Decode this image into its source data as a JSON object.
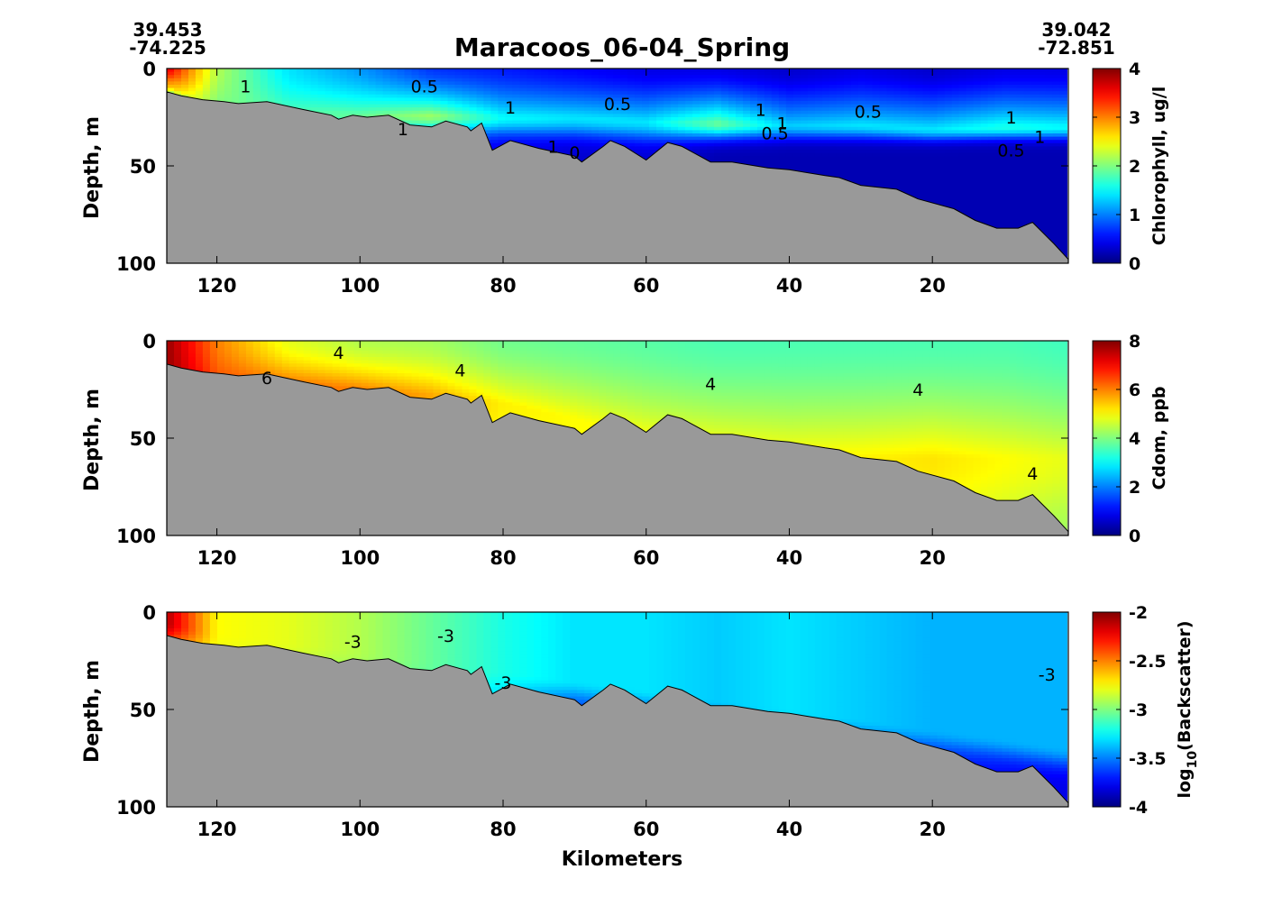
{
  "figure": {
    "title": "Maracoos_06-04_Spring",
    "start": {
      "lat": "39.453",
      "lon": "-74.225"
    },
    "end": {
      "lat": "39.042",
      "lon": "-72.851"
    },
    "xlabel": "Kilometers",
    "bathymetry_color": "#999999"
  },
  "chart_data": [
    {
      "type": "heatmap",
      "xlabel": "",
      "ylabel": "Depth, m",
      "xlim": [
        127,
        1
      ],
      "ylim": [
        0,
        100
      ],
      "yreversed": true,
      "xticks": [
        "120",
        "100",
        "80",
        "60",
        "40",
        "20"
      ],
      "xtick_values": [
        120,
        100,
        80,
        60,
        40,
        20
      ],
      "yticks": [
        "0",
        "50",
        "100"
      ],
      "ytick_values": [
        0,
        50,
        100
      ],
      "colorbar": {
        "label": "Chlorophyll, ug/l",
        "min": 0,
        "max": 4,
        "ticks": [
          "0",
          "1",
          "2",
          "3",
          "4"
        ],
        "tick_values": [
          0,
          1,
          2,
          3,
          4
        ]
      },
      "contour_labels": [
        {
          "text": "1",
          "x": 116,
          "y": 9
        },
        {
          "text": "0.5",
          "x": 91,
          "y": 9
        },
        {
          "text": "1",
          "x": 79,
          "y": 20
        },
        {
          "text": "0.5",
          "x": 64,
          "y": 18
        },
        {
          "text": "1",
          "x": 44,
          "y": 21
        },
        {
          "text": "0.5",
          "x": 29,
          "y": 22
        },
        {
          "text": "1",
          "x": 41,
          "y": 28
        },
        {
          "text": "0.5",
          "x": 42,
          "y": 33
        },
        {
          "text": "1",
          "x": 9,
          "y": 25
        },
        {
          "text": "1",
          "x": 5,
          "y": 35
        },
        {
          "text": "0.5",
          "x": 9,
          "y": 42
        },
        {
          "text": "1",
          "x": 94,
          "y": 31
        },
        {
          "text": "1",
          "x": 73,
          "y": 40
        },
        {
          "text": "0",
          "x": 70,
          "y": 43
        }
      ],
      "field": {
        "columns_km": [
          127,
          120,
          110,
          100,
          90,
          80,
          70,
          60,
          50,
          40,
          30,
          20,
          10,
          1
        ],
        "surface": [
          3.6,
          2.2,
          1.4,
          1.1,
          0.7,
          0.6,
          0.5,
          0.4,
          0.4,
          0.3,
          0.4,
          0.3,
          0.4,
          0.4
        ],
        "max_depth": [
          6,
          18,
          22,
          24,
          24,
          25,
          25,
          27,
          28,
          29,
          29,
          31,
          30,
          30
        ],
        "max_value": [
          3.0,
          2.0,
          1.8,
          1.9,
          2.1,
          1.5,
          1.4,
          1.4,
          1.9,
          1.3,
          1.4,
          1.4,
          1.6,
          1.5
        ],
        "bottom": [
          1.0,
          0.9,
          0.7,
          0.6,
          0.6,
          0.4,
          0.3,
          0.3,
          0.2,
          0.2,
          0.2,
          0.2,
          0.2,
          0.2
        ],
        "layer_width": [
          8,
          8,
          9,
          9,
          9,
          9,
          10,
          10,
          8,
          7,
          7,
          6,
          6,
          6
        ]
      }
    },
    {
      "type": "heatmap",
      "xlabel": "",
      "ylabel": "Depth, m",
      "xlim": [
        127,
        1
      ],
      "ylim": [
        0,
        100
      ],
      "yreversed": true,
      "xticks": [
        "120",
        "100",
        "80",
        "60",
        "40",
        "20"
      ],
      "xtick_values": [
        120,
        100,
        80,
        60,
        40,
        20
      ],
      "yticks": [
        "0",
        "50",
        "100"
      ],
      "ytick_values": [
        0,
        50,
        100
      ],
      "colorbar": {
        "label": "Cdom, ppb",
        "min": 0,
        "max": 8,
        "ticks": [
          "0",
          "2",
          "4",
          "6",
          "8"
        ],
        "tick_values": [
          0,
          2,
          4,
          6,
          8
        ]
      },
      "contour_labels": [
        {
          "text": "4",
          "x": 103,
          "y": 6
        },
        {
          "text": "6",
          "x": 113,
          "y": 19
        },
        {
          "text": "4",
          "x": 86,
          "y": 15
        },
        {
          "text": "4",
          "x": 51,
          "y": 22
        },
        {
          "text": "4",
          "x": 22,
          "y": 25
        },
        {
          "text": "4",
          "x": 6,
          "y": 68
        }
      ],
      "field": {
        "columns_km": [
          127,
          120,
          110,
          100,
          90,
          80,
          70,
          60,
          50,
          40,
          30,
          20,
          10,
          1
        ],
        "surface": [
          7.8,
          6.0,
          4.8,
          4.4,
          4.3,
          3.9,
          3.8,
          3.7,
          3.6,
          3.6,
          3.6,
          3.6,
          3.6,
          3.5
        ],
        "max_depth": [
          10,
          20,
          22,
          25,
          28,
          32,
          40,
          50,
          55,
          58,
          60,
          60,
          60,
          60
        ],
        "max_value": [
          7.8,
          6.4,
          6.1,
          6.0,
          5.7,
          5.1,
          5.0,
          5.0,
          5.0,
          5.0,
          5.1,
          5.2,
          5.0,
          4.8
        ],
        "bottom": [
          7.0,
          6.0,
          6.0,
          5.8,
          5.4,
          5.0,
          5.0,
          5.0,
          4.9,
          4.9,
          4.8,
          4.7,
          4.4,
          4.1
        ],
        "layer_width": [
          10,
          10,
          10,
          10,
          12,
          14,
          25,
          30,
          30,
          30,
          30,
          30,
          30,
          30
        ]
      }
    },
    {
      "type": "heatmap",
      "xlabel": "Kilometers",
      "ylabel": "Depth, m",
      "xlim": [
        127,
        1
      ],
      "ylim": [
        0,
        100
      ],
      "yreversed": true,
      "xticks": [
        "120",
        "100",
        "80",
        "60",
        "40",
        "20"
      ],
      "xtick_values": [
        120,
        100,
        80,
        60,
        40,
        20
      ],
      "yticks": [
        "0",
        "50",
        "100"
      ],
      "ytick_values": [
        0,
        50,
        100
      ],
      "colorbar": {
        "label": "log10(Backscatter)",
        "label_main": "log",
        "label_sub": "10",
        "label_rest": "(Backscatter)",
        "min": -4,
        "max": -2,
        "ticks": [
          "-4",
          "-3.5",
          "-3",
          "-2.5",
          "-2"
        ],
        "tick_values": [
          -4,
          -3.5,
          -3,
          -2.5,
          -2
        ]
      },
      "contour_labels": [
        {
          "text": "-3",
          "x": 101,
          "y": 15
        },
        {
          "text": "-3",
          "x": 88,
          "y": 12
        },
        {
          "text": "-3",
          "x": 80,
          "y": 36
        },
        {
          "text": "-3",
          "x": 4,
          "y": 32
        }
      ],
      "field": {
        "columns_km": [
          127,
          120,
          110,
          100,
          90,
          80,
          70,
          60,
          50,
          40,
          30,
          20,
          10,
          1
        ],
        "surface": [
          -2.1,
          -2.75,
          -2.8,
          -2.9,
          -3.05,
          -3.2,
          -3.3,
          -3.3,
          -3.35,
          -3.3,
          -3.35,
          -3.4,
          -3.4,
          -3.4
        ],
        "max_depth": [
          5,
          10,
          15,
          20,
          25,
          30,
          35,
          40,
          45,
          50,
          55,
          60,
          65,
          70
        ],
        "max_value": [
          -2.1,
          -2.75,
          -2.8,
          -2.9,
          -3.05,
          -3.2,
          -3.3,
          -3.3,
          -3.35,
          -3.3,
          -3.35,
          -3.4,
          -3.4,
          -3.4
        ],
        "bottom": [
          -2.6,
          -2.8,
          -2.9,
          -3.0,
          -3.1,
          -3.35,
          -3.65,
          -3.7,
          -3.7,
          -3.65,
          -3.7,
          -3.7,
          -3.75,
          -3.8
        ],
        "layer_width": [
          10,
          10,
          10,
          10,
          10,
          10,
          10,
          10,
          10,
          10,
          10,
          10,
          10,
          10
        ]
      }
    }
  ],
  "bathymetry": {
    "km": [
      127,
      125,
      122,
      119,
      117,
      113,
      108,
      104,
      103,
      101,
      99,
      96,
      93,
      90,
      88,
      85,
      84.5,
      83,
      81.5,
      79,
      75,
      70,
      69,
      66,
      65,
      63,
      60,
      57,
      55,
      51,
      48,
      43,
      40,
      35,
      33,
      30,
      25,
      22,
      17,
      14,
      11,
      8,
      6,
      3,
      1
    ],
    "depth": [
      12,
      14,
      16,
      17,
      18,
      17,
      21,
      24,
      26,
      24,
      25,
      24,
      29,
      30,
      27,
      30,
      32,
      28,
      42,
      37,
      41,
      45,
      48,
      40,
      37,
      40,
      47,
      38,
      40,
      48,
      48,
      51,
      52,
      55,
      56,
      60,
      62,
      67,
      72,
      78,
      82,
      82,
      79,
      90,
      98
    ]
  }
}
